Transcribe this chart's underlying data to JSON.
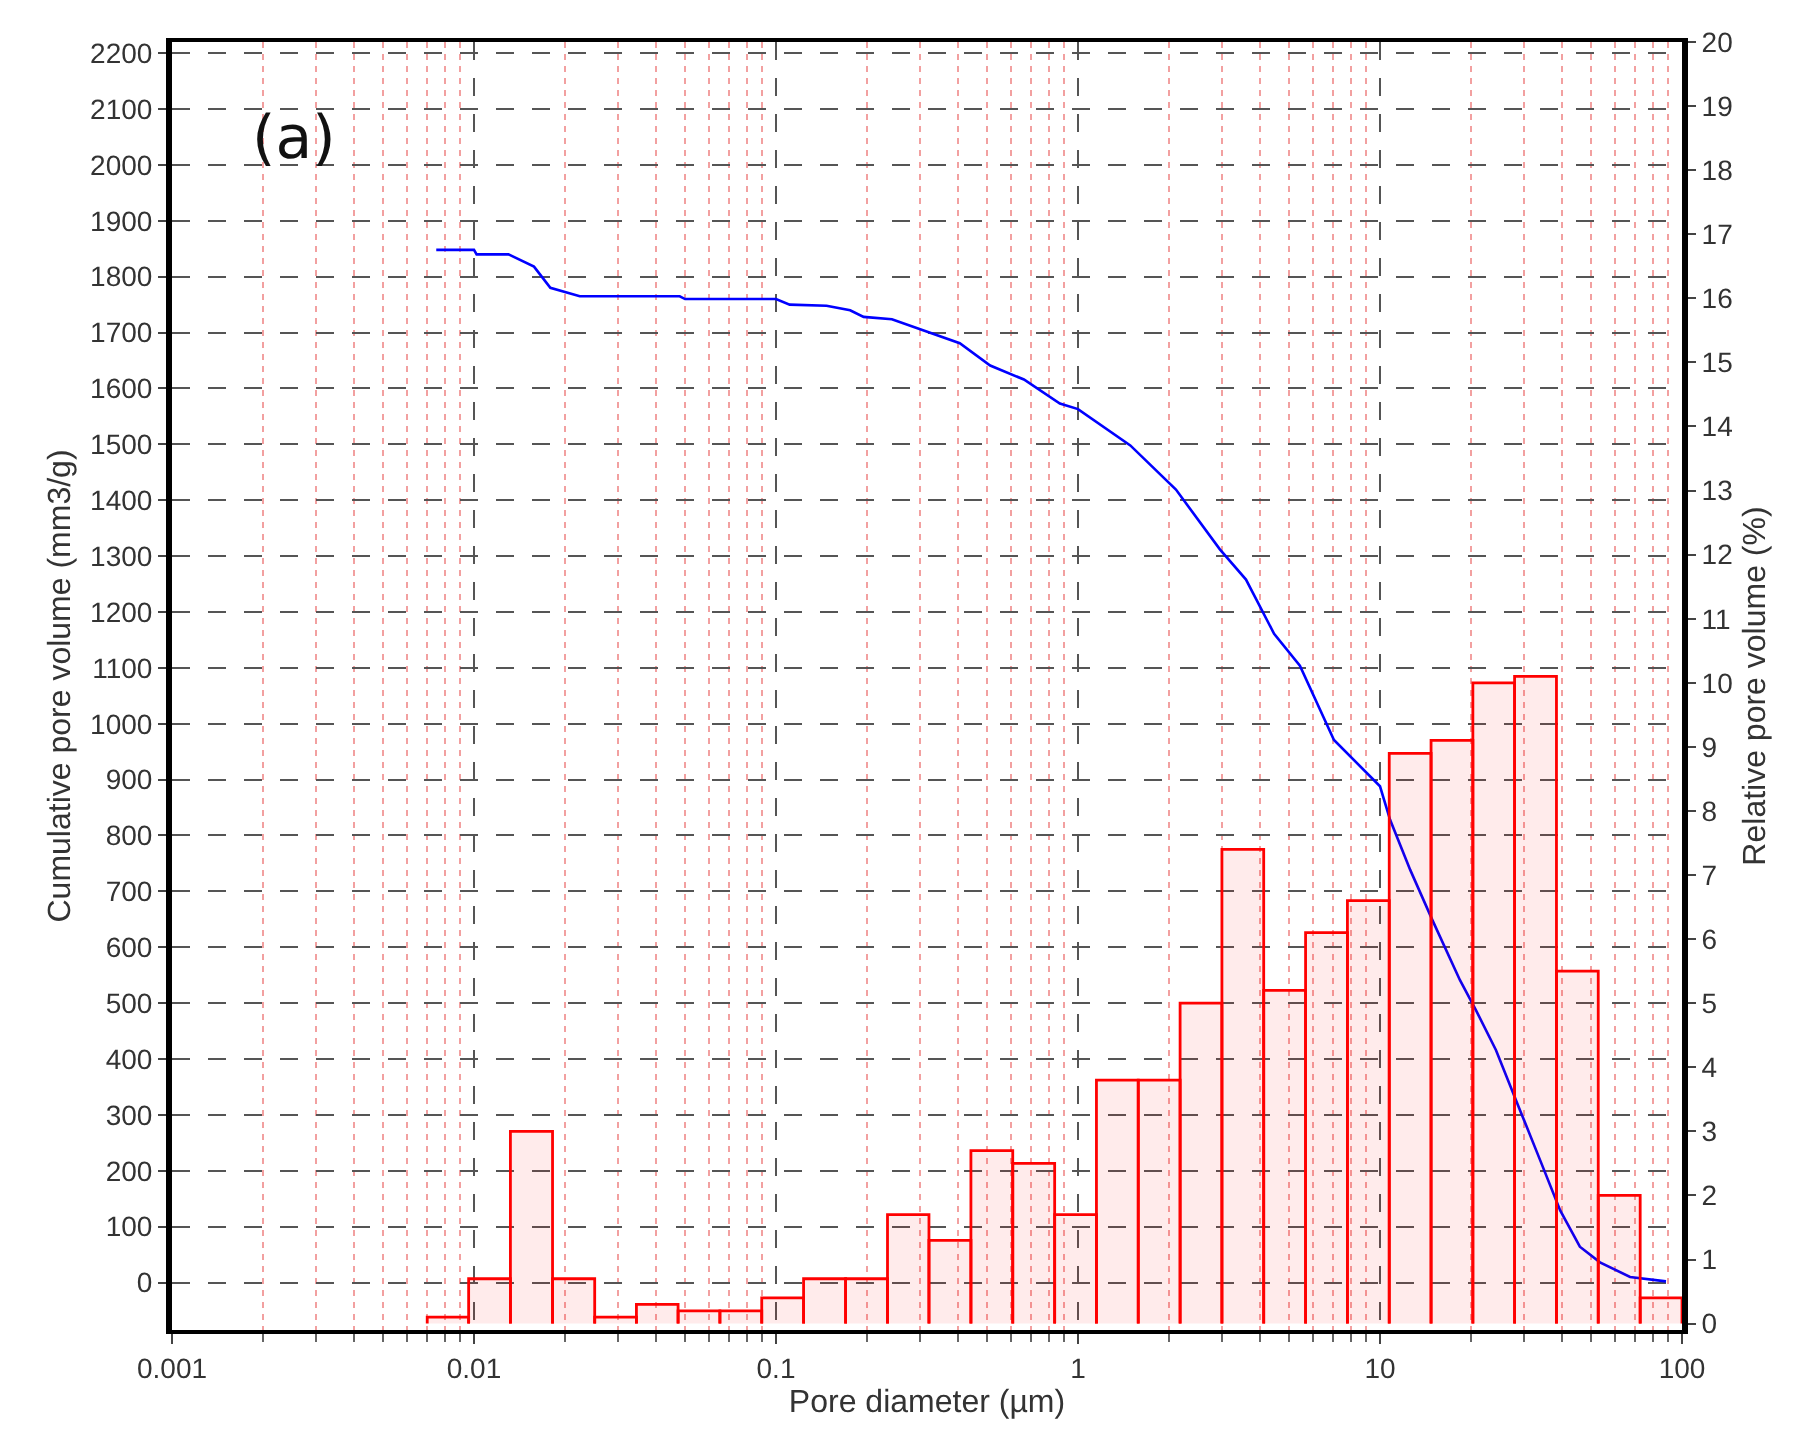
{
  "chart_data": {
    "type": "line",
    "xlabel": "Pore diameter (µm)",
    "ylabel": "Cumulative pore volume (mm3/g)",
    "y2label": "Relative pore volume (%)",
    "annotations": [
      "(a)"
    ],
    "log": "x",
    "grid": true,
    "marker": "none",
    "line_style": "solid",
    "xlim": [
      0.001,
      100
    ],
    "xticks": [
      0.001,
      {
        "value": 0.002,
        "label": null
      },
      {
        "value": 0.003,
        "label": null
      },
      {
        "value": 0.004,
        "label": null
      },
      {
        "value": 0.005,
        "label": null
      },
      {
        "value": 0.006,
        "label": null
      },
      {
        "value": 0.007,
        "label": null
      },
      {
        "value": 0.008,
        "label": null
      },
      {
        "value": 0.009,
        "label": null
      },
      0.01,
      {
        "value": 0.02,
        "label": null
      },
      {
        "value": 0.03,
        "label": null
      },
      {
        "value": 0.04,
        "label": null
      },
      {
        "value": 0.05,
        "label": null
      },
      {
        "value": 0.06,
        "label": null
      },
      {
        "value": 0.07,
        "label": null
      },
      {
        "value": 0.08,
        "label": null
      },
      {
        "value": 0.09,
        "label": null
      },
      0.1,
      {
        "value": 0.2,
        "label": null
      },
      {
        "value": 0.3,
        "label": null
      },
      {
        "value": 0.4,
        "label": null
      },
      {
        "value": 0.5,
        "label": null
      },
      {
        "value": 0.6,
        "label": null
      },
      {
        "value": 0.7,
        "label": null
      },
      {
        "value": 0.8,
        "label": null
      },
      {
        "value": 0.9,
        "label": null
      },
      1,
      {
        "value": 2,
        "label": null
      },
      {
        "value": 3,
        "label": null
      },
      {
        "value": 4,
        "label": null
      },
      {
        "value": 5,
        "label": null
      },
      {
        "value": 6,
        "label": null
      },
      {
        "value": 7,
        "label": null
      },
      {
        "value": 8,
        "label": null
      },
      {
        "value": 9,
        "label": null
      },
      10,
      {
        "value": 20,
        "label": null
      },
      {
        "value": 30,
        "label": null
      },
      {
        "value": 40,
        "label": null
      },
      {
        "value": 50,
        "label": null
      },
      {
        "value": 60,
        "label": null
      },
      {
        "value": 70,
        "label": null
      },
      {
        "value": 80,
        "label": null
      },
      {
        "value": 90,
        "label": null
      },
      100
    ],
    "ylim": [
      -85,
      2220
    ],
    "yticks": [
      0,
      100,
      200,
      300,
      400,
      500,
      600,
      700,
      800,
      900,
      1000,
      1100,
      1200,
      1300,
      1400,
      1500,
      1600,
      1700,
      1800,
      1900,
      2000,
      2100,
      2200
    ],
    "y2lim": [
      -0.1,
      20
    ],
    "y2ticks": [
      0,
      1,
      2,
      3,
      4,
      5,
      6,
      7,
      8,
      9,
      10,
      11,
      12,
      13,
      14,
      15,
      16,
      17,
      18,
      19,
      20
    ],
    "series": [
      {
        "color": "#0000ff",
        "x": [
          0.0075,
          0.01,
          0.0102,
          0.013,
          0.0158,
          0.0179,
          0.0224,
          0.048,
          0.05,
          0.1,
          0.111,
          0.147,
          0.176,
          0.195,
          0.242,
          0.406,
          0.512,
          0.662,
          0.871,
          1,
          1.49,
          2.11,
          2.95,
          3.6,
          4.46,
          5.43,
          7.04,
          10,
          10.8,
          12.6,
          14.9,
          18.4,
          20.8,
          24.2,
          29.1,
          33.9,
          39.5,
          45.9,
          53.5,
          67.3,
          88.5
        ],
        "values": [
          1848,
          1848,
          1840,
          1840,
          1818,
          1780,
          1765,
          1765,
          1760,
          1760,
          1750,
          1748,
          1740,
          1728,
          1724,
          1681,
          1641,
          1616,
          1573,
          1563,
          1498,
          1419,
          1312,
          1258,
          1161,
          1104,
          971,
          888,
          828,
          738,
          649,
          541,
          487,
          416,
          308,
          219,
          129,
          64,
          36,
          10,
          2
        ]
      },
      {
        "type": "histogram",
        "axis": "y2",
        "color": "#ff0000",
        "bins": [
          0.007,
          0.0096,
          0.0132,
          0.0182,
          0.0251,
          0.0345,
          0.0474,
          0.0652,
          0.0897,
          0.1234,
          0.17,
          0.234,
          0.321,
          0.442,
          0.608,
          0.837,
          1.151,
          1.583,
          2.178,
          2.996,
          4.12,
          5.67,
          7.8,
          10.73,
          14.76,
          20.3,
          27.9,
          38.4,
          52.8,
          72.7,
          100
        ],
        "values": [
          0.1,
          0.7,
          3.0,
          0.7,
          0.1,
          0.3,
          0.2,
          0.2,
          0.4,
          0.7,
          0.7,
          1.7,
          1.3,
          2.7,
          2.5,
          1.7,
          3.8,
          3.8,
          5.0,
          7.4,
          5.2,
          6.1,
          6.6,
          8.9,
          9.1,
          10.0,
          10.1,
          5.5,
          2.0,
          0.4
        ]
      }
    ]
  }
}
